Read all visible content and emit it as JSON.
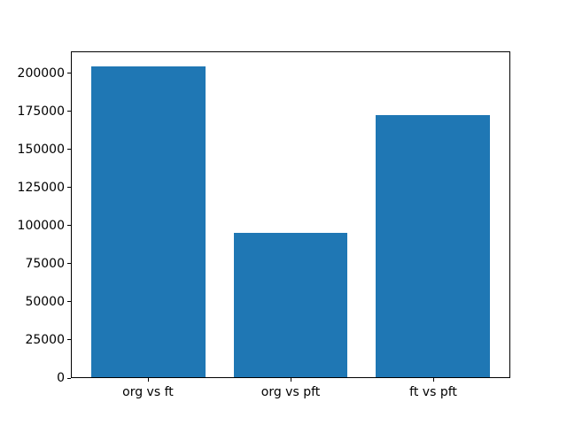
{
  "chart_data": {
    "type": "bar",
    "categories": [
      "org vs ft",
      "org vs pft",
      "ft vs pft"
    ],
    "values": [
      205000,
      95000,
      173000
    ],
    "title": "",
    "xlabel": "",
    "ylabel": "",
    "ylim": [
      0,
      214500
    ],
    "yticks": [
      0,
      25000,
      50000,
      75000,
      100000,
      125000,
      150000,
      175000,
      200000
    ],
    "ytick_labels": [
      "0",
      "25000",
      "50000",
      "75000",
      "100000",
      "125000",
      "150000",
      "175000",
      "200000"
    ],
    "bar_color": "#1f77b4",
    "spine_color": "#000000",
    "text_color": "#000000",
    "background_color": "#ffffff",
    "grid": false,
    "legend": null
  }
}
